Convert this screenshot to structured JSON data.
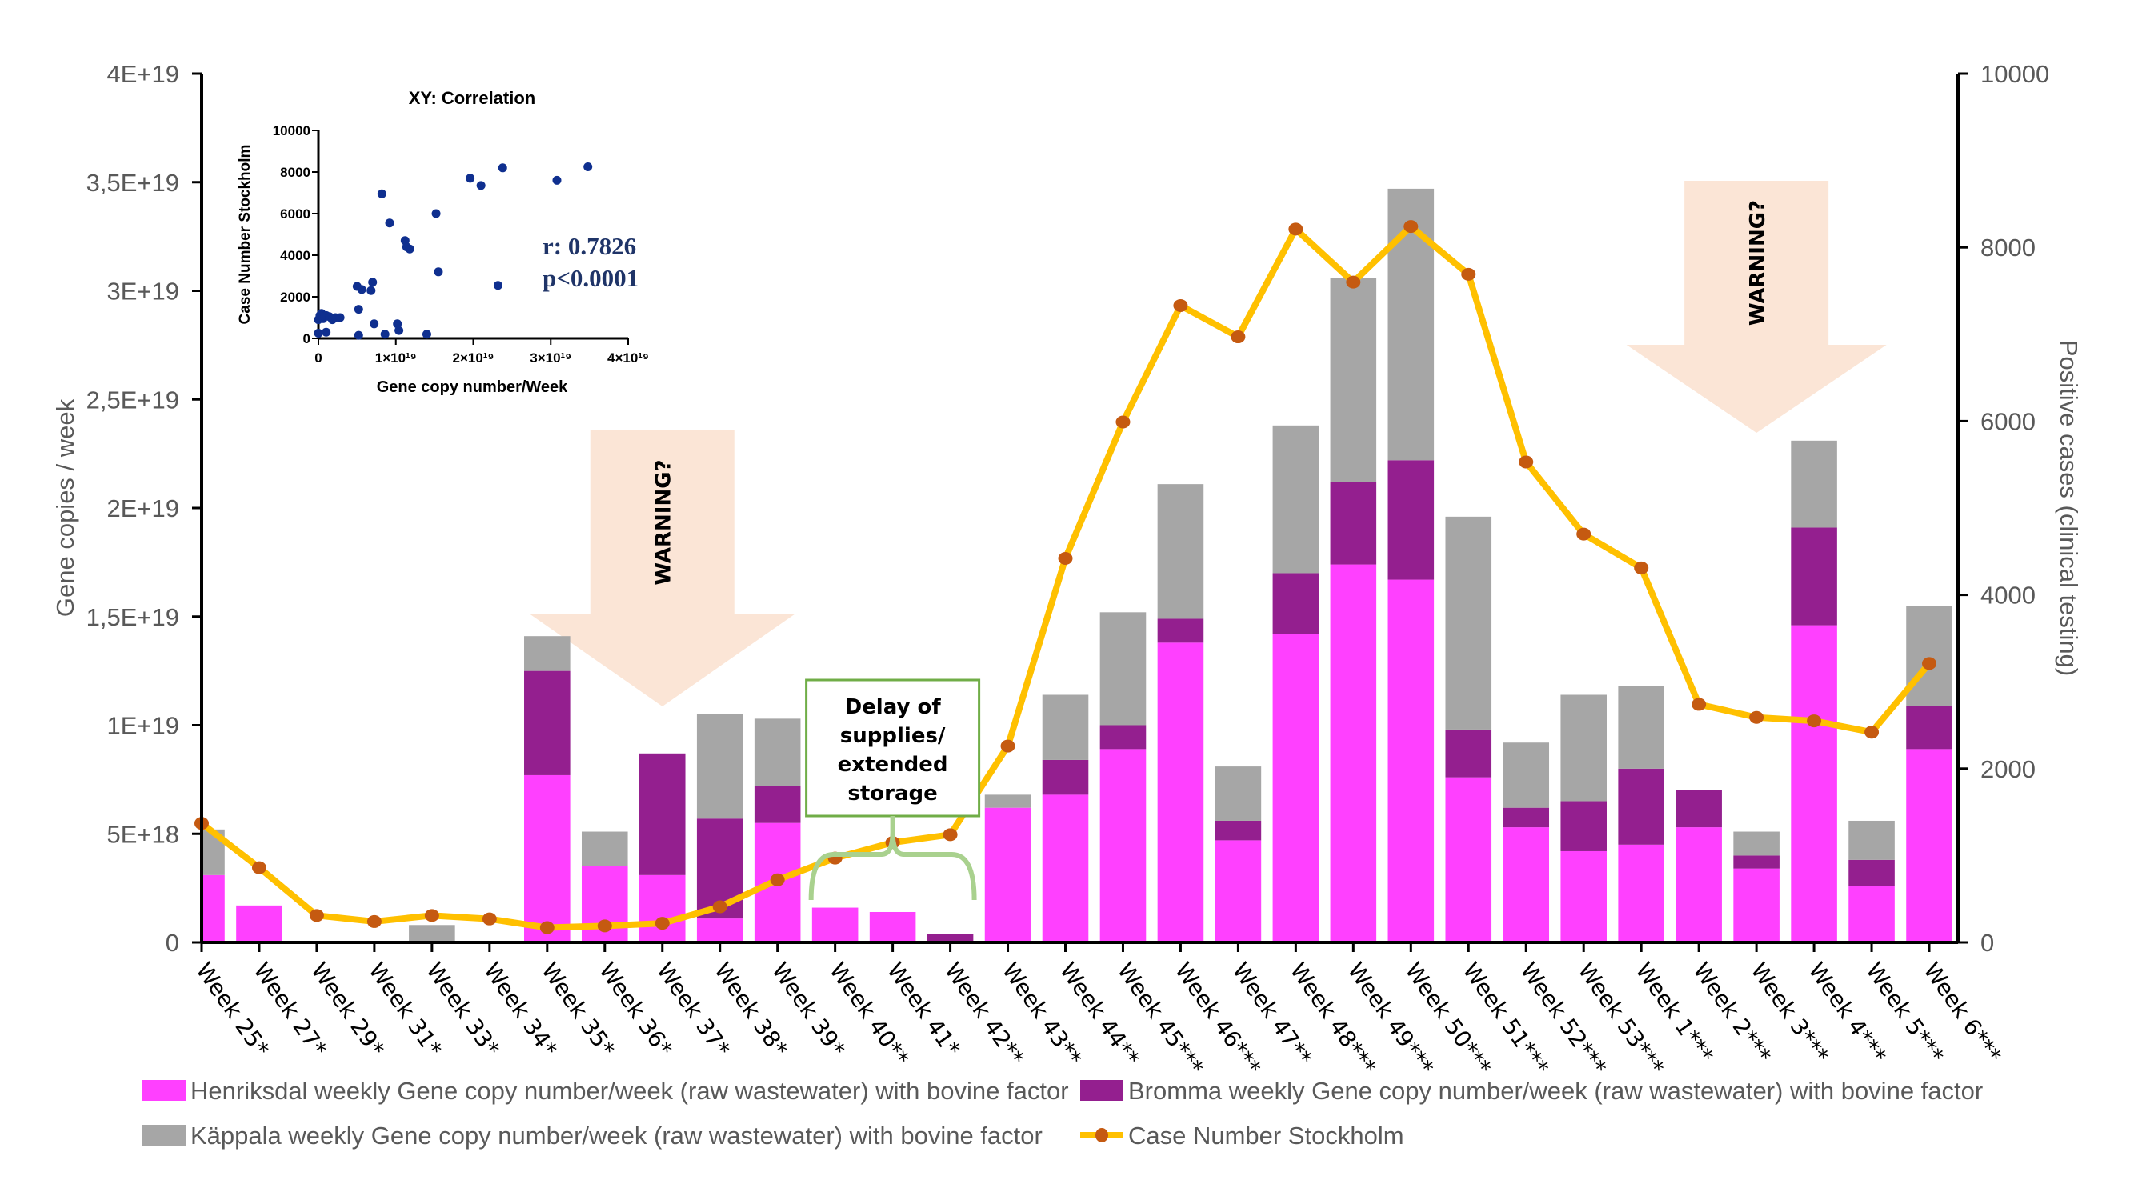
{
  "chart_data": {
    "type": "bar",
    "subtype": "stacked bar with secondary line",
    "categories": [
      "Week 25*",
      "Week 27*",
      "Week 29*",
      "Week 31*",
      "Week 33*",
      "Week 34*",
      "Week 35*",
      "Week 36*",
      "Week 37*",
      "Week 38*",
      "Week 39*",
      "Week 40**",
      "Week 41*",
      "Week 42**",
      "Week 43**",
      "Week 44**",
      "Week 45***",
      "Week 46***",
      "Week 47**",
      "Week 48***",
      "Week 49***",
      "Week 50***",
      "Week 51***",
      "Week 52***",
      "Week 53***",
      "Week 1***",
      "Week 2***",
      "Week 3***",
      "Week 4***",
      "Week 5***",
      "Week 6***"
    ],
    "ylabel": "Gene copies / week",
    "ylim": [
      0,
      4e+19
    ],
    "yticks": [
      0,
      5e+18,
      1e+19,
      1.5e+19,
      2e+19,
      2.5e+19,
      3e+19,
      3.5e+19,
      4e+19
    ],
    "ytick_labels": [
      "0",
      "5E+18",
      "1E+19",
      "1,5E+19",
      "2E+19",
      "2,5E+19",
      "3E+19",
      "3,5E+19",
      "4E+19"
    ],
    "y2label": "Positive cases (clinical testing)",
    "y2lim": [
      0,
      10000
    ],
    "y2ticks": [
      0,
      2000,
      4000,
      6000,
      8000,
      10000
    ],
    "y2tick_labels": [
      "0",
      "2000",
      "4000",
      "6000",
      "8000",
      "10000"
    ],
    "grid": false,
    "legend_position": "bottom",
    "series": [
      {
        "name": "Henriksdal weekly Gene copy number/week (raw wastewater) with bovine factor",
        "kind": "bar",
        "axis": "left",
        "color": "#ff40ff",
        "values": [
          3.1e+18,
          1.7e+18,
          0,
          0,
          0,
          0,
          7.7e+18,
          3.5e+18,
          3.1e+18,
          1.1e+18,
          5.5e+18,
          1.6e+18,
          1.4e+18,
          0,
          6.2e+18,
          6.8e+18,
          8.9e+18,
          1.38e+19,
          4.7e+18,
          1.42e+19,
          1.74e+19,
          1.67e+19,
          7.6e+18,
          5.3e+18,
          4.2e+18,
          4.5e+18,
          5.3e+18,
          3.4e+18,
          1.46e+19,
          2.6e+18,
          8.9e+18
        ]
      },
      {
        "name": "Bromma weekly Gene copy number/week (raw wastewater) with bovine factor",
        "kind": "bar",
        "axis": "left",
        "color": "#941f8f",
        "values": [
          0,
          0,
          0,
          0,
          0,
          0,
          4.8e+18,
          0,
          5.6e+18,
          4.6e+18,
          1.7e+18,
          0,
          0,
          4e+17,
          0,
          1.6e+18,
          1.1e+18,
          1.1e+18,
          9e+17,
          2.8e+18,
          3.8e+18,
          5.5e+18,
          2.2e+18,
          9e+17,
          2.3e+18,
          3.5e+18,
          1.7e+18,
          6e+17,
          4.5e+18,
          1.2e+18,
          2e+18
        ]
      },
      {
        "name": "Käppala weekly Gene copy number/week (raw wastewater) with bovine factor",
        "kind": "bar",
        "axis": "left",
        "color": "#a6a6a6",
        "values": [
          2.1e+18,
          0,
          0,
          0,
          8e+17,
          0,
          1.6e+18,
          1.6e+18,
          0,
          4.8e+18,
          3.1e+18,
          0,
          0,
          0,
          6e+17,
          3e+18,
          5.2e+18,
          6.2e+18,
          2.5e+18,
          6.8e+18,
          9.4e+18,
          1.25e+19,
          9.8e+18,
          3e+18,
          4.9e+18,
          3.8e+18,
          0,
          1.1e+18,
          4e+18,
          1.8e+18,
          4.6e+18
        ]
      },
      {
        "name": "Case Number Stockholm",
        "kind": "line",
        "axis": "right",
        "color": "#ffc000",
        "marker_color": "#c55a11",
        "values": [
          1370,
          860,
          310,
          240,
          310,
          270,
          170,
          190,
          220,
          410,
          720,
          970,
          1150,
          1240,
          2260,
          4420,
          5990,
          7330,
          6970,
          8210,
          7600,
          8240,
          7690,
          5530,
          4700,
          4310,
          2740,
          2590,
          2550,
          2420,
          3210
        ]
      }
    ],
    "annotations": [
      {
        "type": "down-arrow",
        "text": "WARNING?",
        "near": "Week 37*",
        "color": "#fbe5d6"
      },
      {
        "type": "down-arrow",
        "text": "WARNING?",
        "near": "Week 3***",
        "color": "#fbe5d6"
      },
      {
        "type": "box-with-brace",
        "text_lines": [
          "Delay of",
          "supplies/",
          "extended",
          "storage"
        ],
        "spans": [
          "Week 40**",
          "Week 42**"
        ],
        "color": "#70ad47"
      }
    ],
    "inset": {
      "type": "scatter",
      "title": "XY: Correlation",
      "xlabel": "Gene copy number/Week",
      "ylabel": "Case Number Stockholm",
      "xlim": [
        0,
        4e+19
      ],
      "ylim": [
        0,
        10000
      ],
      "xtick_labels": [
        "0",
        "1×10¹⁹",
        "2×10¹⁹",
        "3×10¹⁹",
        "4×10¹⁹"
      ],
      "ytick_labels": [
        "0",
        "2000",
        "4000",
        "6000",
        "8000",
        "10000"
      ],
      "point_color": "#0f2f8f",
      "stats": [
        "r: 0.7826",
        "p<0.0001"
      ],
      "points": [
        [
          0.0,
          250
        ],
        [
          0.0,
          900
        ],
        [
          2e+17,
          1100
        ],
        [
          4e+17,
          1200
        ],
        [
          6e+17,
          950
        ],
        [
          8e+17,
          1050
        ],
        [
          1e+18,
          300
        ],
        [
          1e+18,
          1100
        ],
        [
          1.4e+18,
          1050
        ],
        [
          1.8e+18,
          900
        ],
        [
          2.2e+18,
          1000
        ],
        [
          2.8e+18,
          1000
        ],
        [
          5e+18,
          2500
        ],
        [
          5.2e+18,
          1400
        ],
        [
          5.2e+18,
          150
        ],
        [
          5.6e+18,
          2350
        ],
        [
          6.8e+18,
          2300
        ],
        [
          7e+18,
          2700
        ],
        [
          7.2e+18,
          700
        ],
        [
          8.2e+18,
          6950
        ],
        [
          8.6e+18,
          200
        ],
        [
          9.2e+18,
          5550
        ],
        [
          1.02e+19,
          700
        ],
        [
          1.04e+19,
          380
        ],
        [
          1.12e+19,
          4700
        ],
        [
          1.14e+19,
          4400
        ],
        [
          1.18e+19,
          4300
        ],
        [
          1.4e+19,
          200
        ],
        [
          1.52e+19,
          6000
        ],
        [
          1.55e+19,
          3200
        ],
        [
          1.96e+19,
          7700
        ],
        [
          2.1e+19,
          7350
        ],
        [
          2.32e+19,
          2550
        ],
        [
          2.38e+19,
          8200
        ],
        [
          3.08e+19,
          7600
        ],
        [
          3.48e+19,
          8250
        ]
      ]
    }
  },
  "legend": {
    "items": [
      {
        "label": "Henriksdal weekly Gene copy number/week (raw wastewater) with bovine factor",
        "color": "#ff40ff"
      },
      {
        "label": "Bromma weekly Gene copy number/week (raw wastewater) with bovine factor",
        "color": "#941f8f"
      },
      {
        "label": "Käppala weekly Gene copy number/week (raw wastewater) with bovine factor",
        "color": "#a6a6a6"
      },
      {
        "label": "Case Number Stockholm",
        "color": "#ffc000"
      }
    ]
  }
}
